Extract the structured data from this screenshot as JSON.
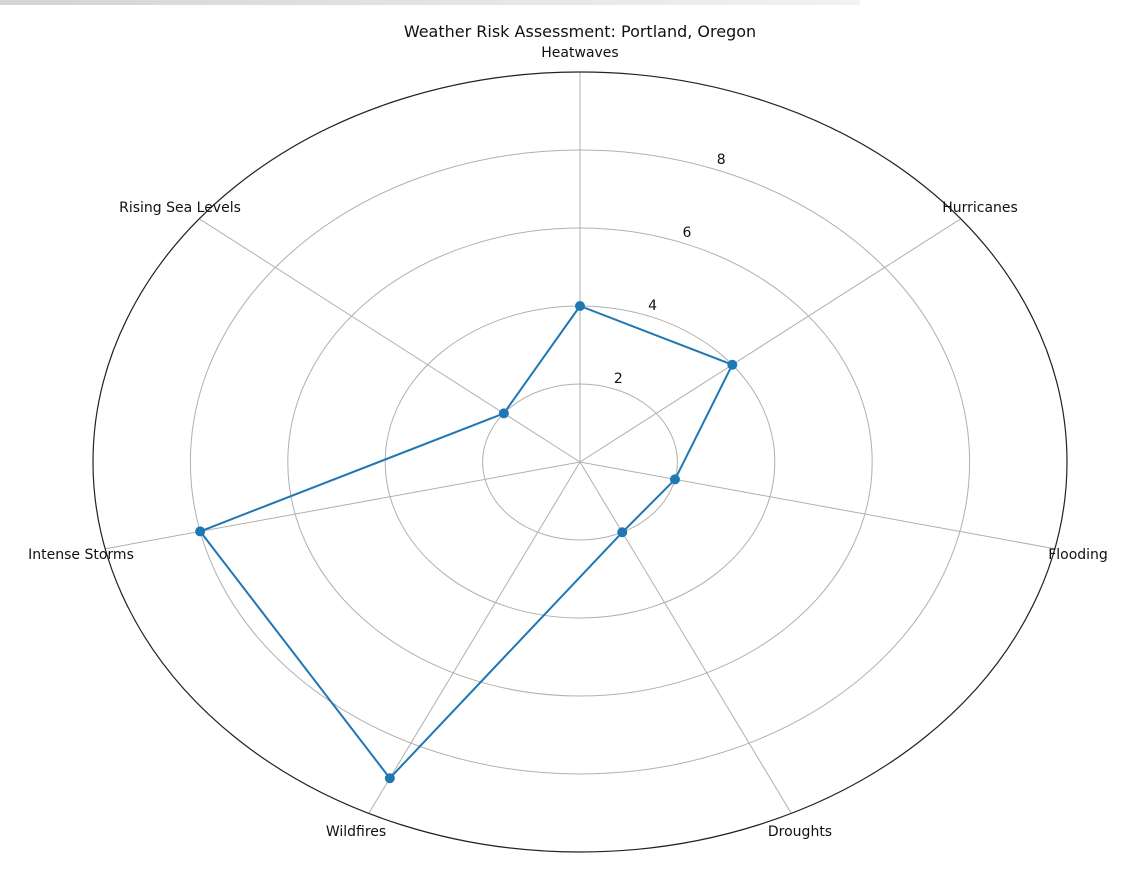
{
  "chart_data": {
    "type": "radar",
    "title": "Weather Risk Assessment: Portland, Oregon",
    "categories": [
      "Heatwaves",
      "Hurricanes",
      "Flooding",
      "Droughts",
      "Wildfires",
      "Intense Storms",
      "Rising Sea Levels"
    ],
    "series": [
      {
        "values": [
          4,
          4,
          2,
          2,
          9,
          8,
          2
        ],
        "color": "#1f77b4"
      }
    ],
    "rlim": [
      0,
      10
    ],
    "rticks": [
      2,
      4,
      6,
      8
    ],
    "rtick_labels": [
      "2",
      "4",
      "6",
      "8"
    ],
    "grid": true
  }
}
